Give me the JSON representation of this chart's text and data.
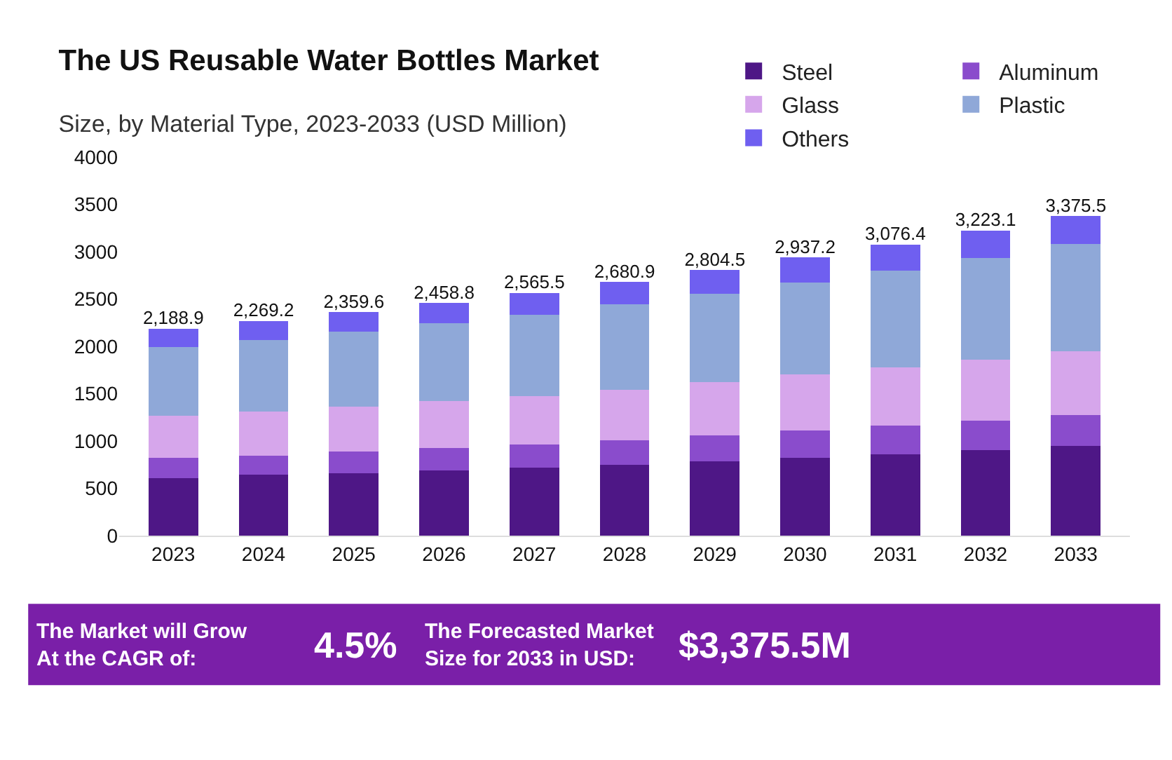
{
  "chart_data": {
    "type": "bar",
    "stacked": true,
    "title": "The US Reusable Water Bottles Market",
    "subtitle": "Size, by Material Type, 2023-2033 (USD Million)",
    "categories": [
      "2023",
      "2024",
      "2025",
      "2026",
      "2027",
      "2028",
      "2029",
      "2030",
      "2031",
      "2032",
      "2033"
    ],
    "series": [
      {
        "name": "Steel",
        "color": "#4e1786",
        "values": [
          608,
          642,
          662,
          686,
          716,
          750,
          784,
          824,
          863,
          907,
          951
        ]
      },
      {
        "name": "Aluminum",
        "color": "#8a4ccc",
        "values": [
          211,
          206,
          230,
          240,
          250,
          260,
          275,
          284,
          299,
          309,
          324
        ]
      },
      {
        "name": "Glass",
        "color": "#d6a6eb",
        "values": [
          446,
          466,
          471,
          496,
          509,
          534,
          564,
          593,
          613,
          647,
          676
        ]
      },
      {
        "name": "Plastic",
        "color": "#8fa8d8",
        "values": [
          725,
          750,
          794,
          823,
          858,
          897,
          931,
          975,
          1024,
          1073,
          1127
        ]
      },
      {
        "name": "Others",
        "color": "#6f5ff0",
        "values": [
          198.9,
          205.2,
          202.6,
          213.8,
          232.5,
          239.9,
          250.5,
          261.2,
          277.4,
          287.1,
          297.5
        ]
      }
    ],
    "totals": [
      "2,188.9",
      "2,269.2",
      "2,359.6",
      "2,458.8",
      "2,565.5",
      "2,680.9",
      "2,804.5",
      "2,937.2",
      "3,076.4",
      "3,223.1",
      "3,375.5"
    ],
    "ylim": [
      0,
      4000
    ],
    "yticks": [
      0,
      500,
      1000,
      1500,
      2000,
      2500,
      3000,
      3500,
      4000
    ],
    "legend": "top right",
    "annotations": [
      "The Market will Grow\nAt the CAGR of:",
      "4.5%",
      "The Forecasted Market\nSize for 2033 in USD:",
      "$3,375.5M"
    ]
  }
}
